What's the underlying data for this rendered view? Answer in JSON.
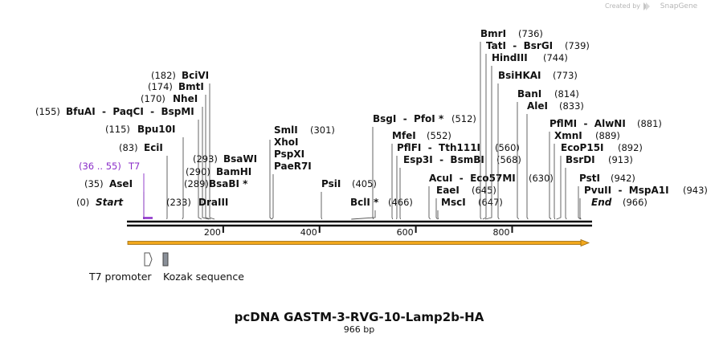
{
  "watermark": {
    "text": "Created by",
    "brand": "SnapGene"
  },
  "map": {
    "title": "pcDNA GASTM-3-RVG-10-Lamp2b-HA",
    "length_label": "966 bp",
    "length": 966,
    "ticks": [
      "200",
      "400",
      "600",
      "800"
    ],
    "tick_values": [
      200,
      400,
      600,
      800
    ],
    "colors": {
      "backbone": "#111111",
      "orf": "#f2a81d",
      "t7": "#8b2fc9",
      "kozak": "#8a9099"
    }
  },
  "sites": [
    {
      "pos": "(0)",
      "name": "Start",
      "bp": 0,
      "italic": true
    },
    {
      "pos": "(35)",
      "name": "AseI",
      "bp": 35
    },
    {
      "pos": "(36 .. 55)",
      "name": "T7",
      "bp": 36,
      "primer": true
    },
    {
      "pos": "(83)",
      "name": "EciI",
      "bp": 83
    },
    {
      "pos": "(115)",
      "name": "Bpu10I",
      "bp": 115
    },
    {
      "pos": "(155)",
      "name": "BfuAI  -  PaqCI  -  BspMI",
      "bp": 155
    },
    {
      "pos": "(170)",
      "name": "NheI",
      "bp": 170
    },
    {
      "pos": "(174)",
      "name": "BmtI",
      "bp": 174
    },
    {
      "pos": "(182)",
      "name": "BciVI",
      "bp": 182
    },
    {
      "pos": "(233)",
      "name": "DraIII",
      "bp": 233
    },
    {
      "pos": "(289)",
      "name": "BsaBI *",
      "bp": 289
    },
    {
      "pos": "(290)",
      "name": "BamHI",
      "bp": 290
    },
    {
      "pos": "(293)",
      "name": "BsaWI",
      "bp": 293
    },
    {
      "pos": "(301)",
      "name": "SmlI",
      "bp": 301
    },
    {
      "pos": "",
      "name": "XhoI",
      "bp": 301
    },
    {
      "pos": "",
      "name": "PspXI",
      "bp": 301
    },
    {
      "pos": "",
      "name": "PaeR7I",
      "bp": 301
    },
    {
      "pos": "(405)",
      "name": "PsiI",
      "bp": 405
    },
    {
      "pos": "(466)",
      "name": "BclI *",
      "bp": 466
    },
    {
      "pos": "(512)",
      "name": "BsgI  -  PfoI *",
      "bp": 512
    },
    {
      "pos": "(552)",
      "name": "MfeI",
      "bp": 552
    },
    {
      "pos": "(560)",
      "name": "PflFI  -  Tth111I",
      "bp": 560
    },
    {
      "pos": "(568)",
      "name": "Esp3I  -  BsmBI",
      "bp": 568
    },
    {
      "pos": "(630)",
      "name": "AcuI  -  Eco57MI",
      "bp": 630
    },
    {
      "pos": "(645)",
      "name": "EaeI",
      "bp": 645
    },
    {
      "pos": "(647)",
      "name": "MscI",
      "bp": 647
    },
    {
      "pos": "(736)",
      "name": "BmrI",
      "bp": 736
    },
    {
      "pos": "(739)",
      "name": "TatI  -  BsrGI",
      "bp": 739
    },
    {
      "pos": "(744)",
      "name": "HindIII",
      "bp": 744
    },
    {
      "pos": "(773)",
      "name": "BsiHKAI",
      "bp": 773
    },
    {
      "pos": "(814)",
      "name": "BanI",
      "bp": 814
    },
    {
      "pos": "(833)",
      "name": "AleI",
      "bp": 833
    },
    {
      "pos": "(881)",
      "name": "PflMI  -  AlwNI",
      "bp": 881
    },
    {
      "pos": "(889)",
      "name": "XmnI",
      "bp": 889
    },
    {
      "pos": "(892)",
      "name": "EcoP15I",
      "bp": 892
    },
    {
      "pos": "(913)",
      "name": "BsrDI",
      "bp": 913
    },
    {
      "pos": "(942)",
      "name": "PstI",
      "bp": 942
    },
    {
      "pos": "(943)",
      "name": "PvuII  -  MspA1I",
      "bp": 943
    },
    {
      "pos": "(966)",
      "name": "End",
      "bp": 966,
      "italic": true
    }
  ],
  "features": [
    {
      "name": "T7 promoter",
      "icon": "promoter-arrow-icon"
    },
    {
      "name": "Kozak sequence",
      "icon": "kozak-box-icon"
    }
  ]
}
